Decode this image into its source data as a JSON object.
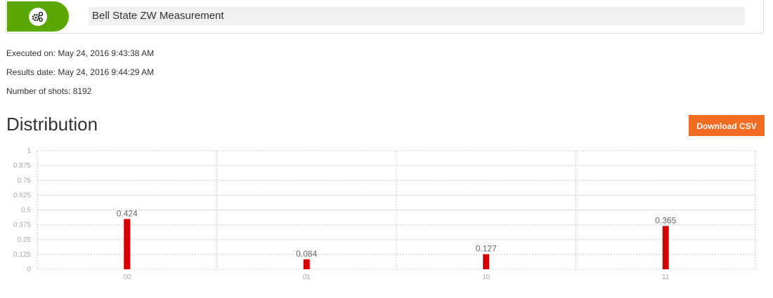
{
  "header": {
    "title": "Bell State ZW Measurement",
    "icon": "gears-icon",
    "accent": "#5aa700"
  },
  "meta": {
    "executed": "Executed on: May 24, 2016 9:43:38 AM",
    "results": "Results date: May 24, 2016 9:44:29 AM",
    "shots": "Number of shots: 8192"
  },
  "section_title": "Distribution",
  "download_label": "Download CSV",
  "download_color": "#f26d21",
  "chart_data": {
    "type": "bar",
    "categories": [
      "00",
      "01",
      "10",
      "11"
    ],
    "values": [
      0.424,
      0.084,
      0.127,
      0.365
    ],
    "data_labels": [
      "0.424",
      "0.084",
      "0.127",
      "0.365"
    ],
    "yticks": [
      "0",
      "0.125",
      "0.25",
      "0.375",
      "0.5",
      "0.625",
      "0.75",
      "0.875",
      "1"
    ],
    "ylim": [
      0,
      1
    ],
    "grid": true,
    "bar_color": "#d50000"
  }
}
